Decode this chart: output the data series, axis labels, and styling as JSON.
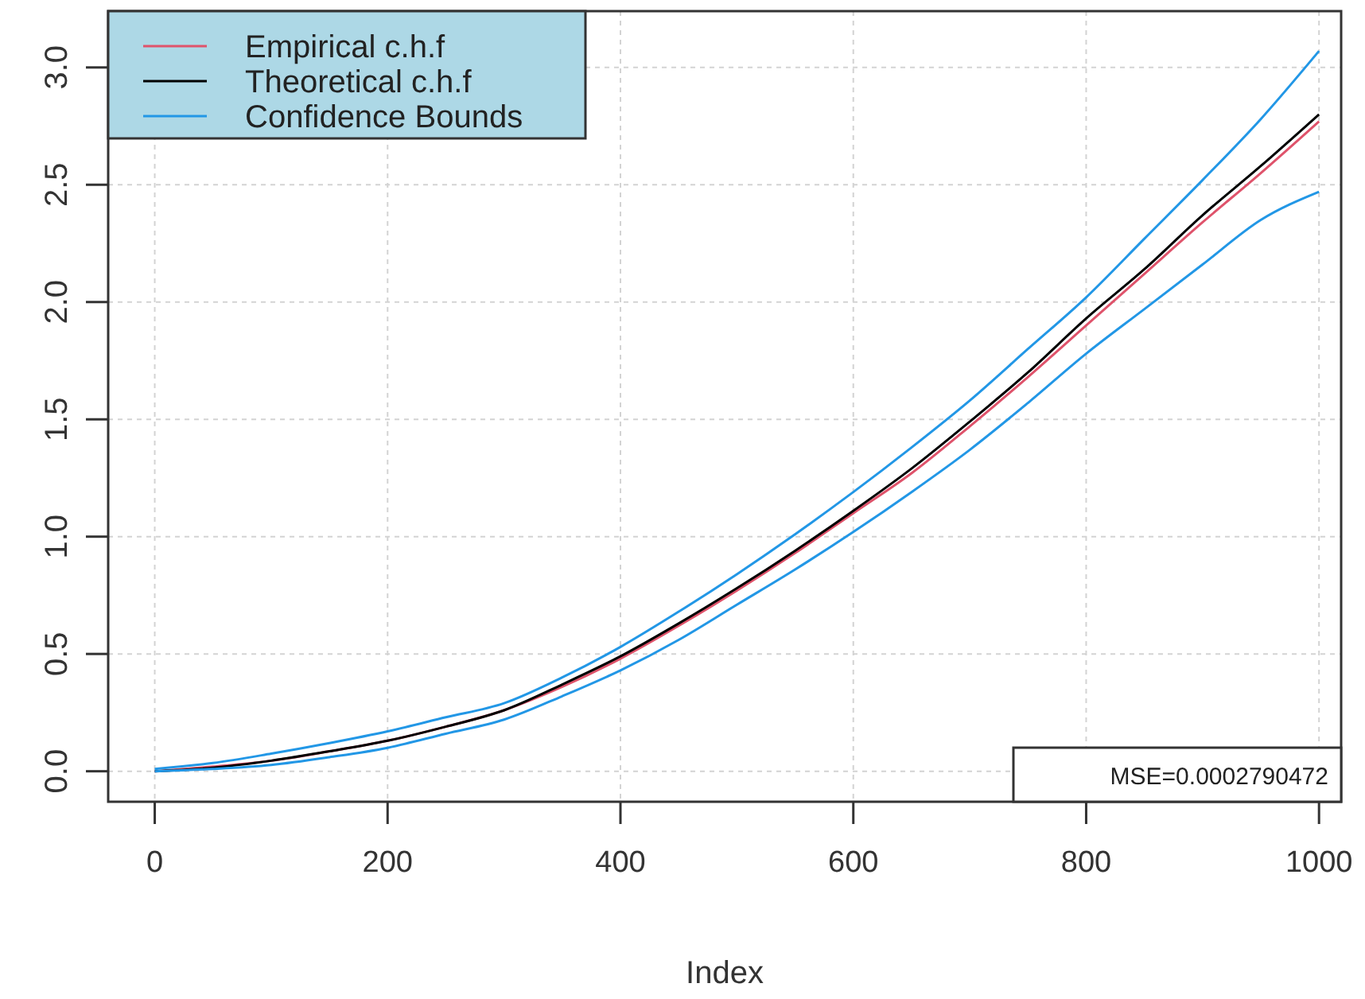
{
  "chart_data": {
    "type": "line",
    "xlabel": "Index",
    "x": [
      0,
      50,
      100,
      150,
      200,
      250,
      300,
      350,
      400,
      450,
      500,
      550,
      600,
      650,
      700,
      750,
      800,
      850,
      900,
      950,
      1000
    ],
    "series": [
      {
        "name": "Empirical c.h.f",
        "color": "#df536b",
        "values": [
          0,
          0.02,
          0.045,
          0.085,
          0.13,
          0.19,
          0.26,
          0.36,
          0.48,
          0.62,
          0.77,
          0.93,
          1.1,
          1.27,
          1.47,
          1.68,
          1.9,
          2.12,
          2.34,
          2.55,
          2.77
        ]
      },
      {
        "name": "Theoretical c.h.f",
        "color": "#000000",
        "values": [
          0,
          0.015,
          0.045,
          0.085,
          0.13,
          0.19,
          0.26,
          0.37,
          0.49,
          0.63,
          0.78,
          0.94,
          1.11,
          1.29,
          1.49,
          1.7,
          1.93,
          2.14,
          2.37,
          2.58,
          2.8
        ]
      },
      {
        "name": "Confidence Bounds",
        "color": "#2297e6",
        "values": [
          0.01,
          0.035,
          0.075,
          0.12,
          0.17,
          0.23,
          0.29,
          0.4,
          0.53,
          0.68,
          0.84,
          1.01,
          1.19,
          1.38,
          1.58,
          1.8,
          2.02,
          2.27,
          2.52,
          2.78,
          3.07
        ]
      },
      {
        "color": "#2297e6",
        "values": [
          0,
          0.01,
          0.027,
          0.06,
          0.1,
          0.16,
          0.22,
          0.32,
          0.43,
          0.56,
          0.71,
          0.86,
          1.02,
          1.19,
          1.37,
          1.57,
          1.78,
          1.97,
          2.16,
          2.35,
          2.47
        ]
      }
    ],
    "xlim": [
      -40,
      1019
    ],
    "ylim": [
      -0.13,
      3.24
    ],
    "xticks": [
      0,
      200,
      400,
      600,
      800,
      1000
    ],
    "yticks": [
      {
        "value": 0,
        "label": "0.0"
      },
      {
        "value": 0.5,
        "label": "0.5"
      },
      {
        "value": 1,
        "label": "1.0"
      },
      {
        "value": 1.5,
        "label": "1.5"
      },
      {
        "value": 2,
        "label": "2.0"
      },
      {
        "value": 2.5,
        "label": "2.5"
      },
      {
        "value": 3,
        "label": "3.0"
      }
    ],
    "grid": true,
    "legend": "top left",
    "line_style": "solid",
    "annotations": [
      "MSE=0.0002790472"
    ]
  }
}
